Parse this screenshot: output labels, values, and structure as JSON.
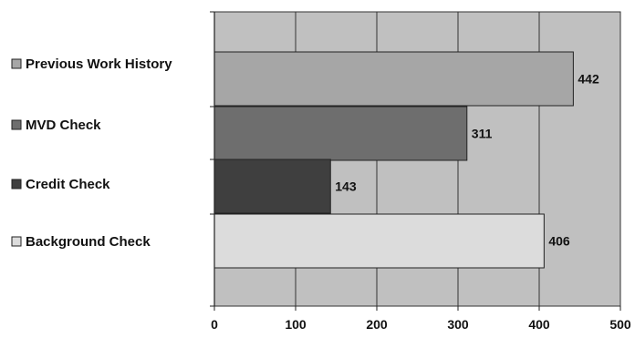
{
  "chart_data": {
    "type": "bar",
    "orientation": "horizontal",
    "categories": [
      "Previous Work History",
      "MVD Check",
      "Credit Check",
      "Background Check"
    ],
    "values": [
      442,
      311,
      143,
      406
    ],
    "data_labels": [
      "442",
      "311",
      "143",
      "406"
    ],
    "xlim": [
      0,
      500
    ],
    "x_ticks": [
      "0",
      "100",
      "200",
      "300",
      "400",
      "500"
    ],
    "grid": true,
    "legend": "left",
    "colors": [
      "#a6a6a6",
      "#6e6e6e",
      "#3f3f3f",
      "#dcdcdc"
    ],
    "plot_background": "#c0c0c0"
  }
}
